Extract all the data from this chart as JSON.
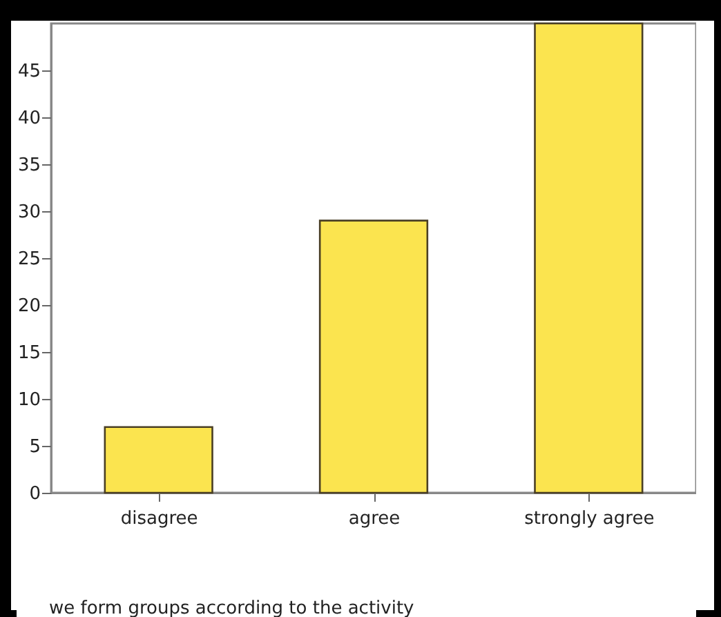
{
  "chart_data": {
    "type": "bar",
    "xlabel": "we form groups according to the activity",
    "categories": [
      "disagree",
      "agree",
      "strongly agree"
    ],
    "values": [
      7,
      29,
      50
    ],
    "color": "#fbe44f",
    "ylim": [
      0,
      50
    ],
    "yticks": [
      0,
      5,
      10,
      15,
      20,
      25,
      30,
      35,
      40,
      45
    ]
  }
}
